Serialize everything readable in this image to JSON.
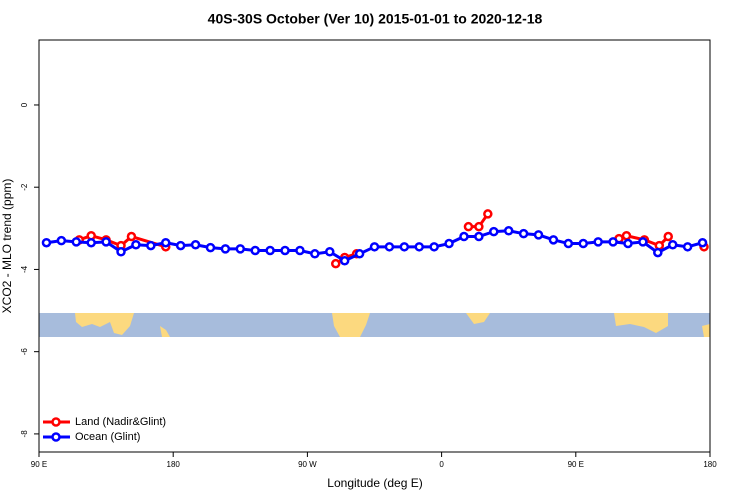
{
  "chart_data": {
    "type": "line",
    "title": "40S-30S October (Ver 10)   2015-01-01 to 2020-12-18",
    "x_label": "Longitude (deg E)",
    "y_label": "XCO2 - MLO trend (ppm)",
    "xlim": [
      90,
      540
    ],
    "xticks": [
      {
        "value": 90,
        "label": "90 E"
      },
      {
        "value": 180,
        "label": "180"
      },
      {
        "value": 270,
        "label": "90 W"
      },
      {
        "value": 360,
        "label": "0"
      },
      {
        "value": 450,
        "label": "90 E"
      },
      {
        "value": 540,
        "label": "180"
      }
    ],
    "ylim": [
      -8.44,
      1.58
    ],
    "yticks": [
      0,
      -2,
      -4,
      -6,
      -8
    ],
    "legend": "bottom-left",
    "series": [
      {
        "name": "Land (Nadir&Glint)",
        "color": "#ff0000",
        "x": [
          117,
          125,
          135,
          145,
          152,
          175,
          null,
          289,
          295,
          303,
          null,
          378,
          385,
          391,
          null,
          479,
          484,
          496,
          506,
          512,
          null,
          536
        ],
        "values": [
          -3.28,
          -3.18,
          -3.28,
          -3.42,
          -3.2,
          -3.45,
          null,
          -3.86,
          -3.71,
          -3.62,
          null,
          -2.96,
          -2.96,
          -2.65,
          null,
          -3.25,
          -3.18,
          -3.28,
          -3.42,
          -3.2,
          null,
          -3.45
        ]
      },
      {
        "name": "Ocean (Glint)",
        "color": "#0000ff",
        "x": [
          95,
          105,
          115,
          125,
          135,
          145,
          155,
          165,
          175,
          185,
          195,
          205,
          215,
          225,
          235,
          245,
          255,
          265,
          275,
          285,
          295,
          305,
          315,
          325,
          335,
          345,
          355,
          365,
          375,
          385,
          395,
          405,
          415,
          425,
          435,
          445,
          455,
          465,
          475,
          485,
          495,
          505,
          515,
          525,
          535
        ],
        "values": [
          -3.35,
          -3.3,
          -3.33,
          -3.35,
          -3.33,
          -3.57,
          -3.4,
          -3.42,
          -3.35,
          -3.42,
          -3.4,
          -3.47,
          -3.5,
          -3.5,
          -3.54,
          -3.54,
          -3.54,
          -3.54,
          -3.62,
          -3.57,
          -3.79,
          -3.62,
          -3.45,
          -3.45,
          -3.45,
          -3.45,
          -3.45,
          -3.37,
          -3.2,
          -3.2,
          -3.08,
          -3.06,
          -3.13,
          -3.16,
          -3.28,
          -3.37,
          -3.37,
          -3.33,
          -3.33,
          -3.37,
          -3.33,
          -3.59,
          -3.4,
          -3.45,
          -3.35
        ]
      }
    ]
  }
}
